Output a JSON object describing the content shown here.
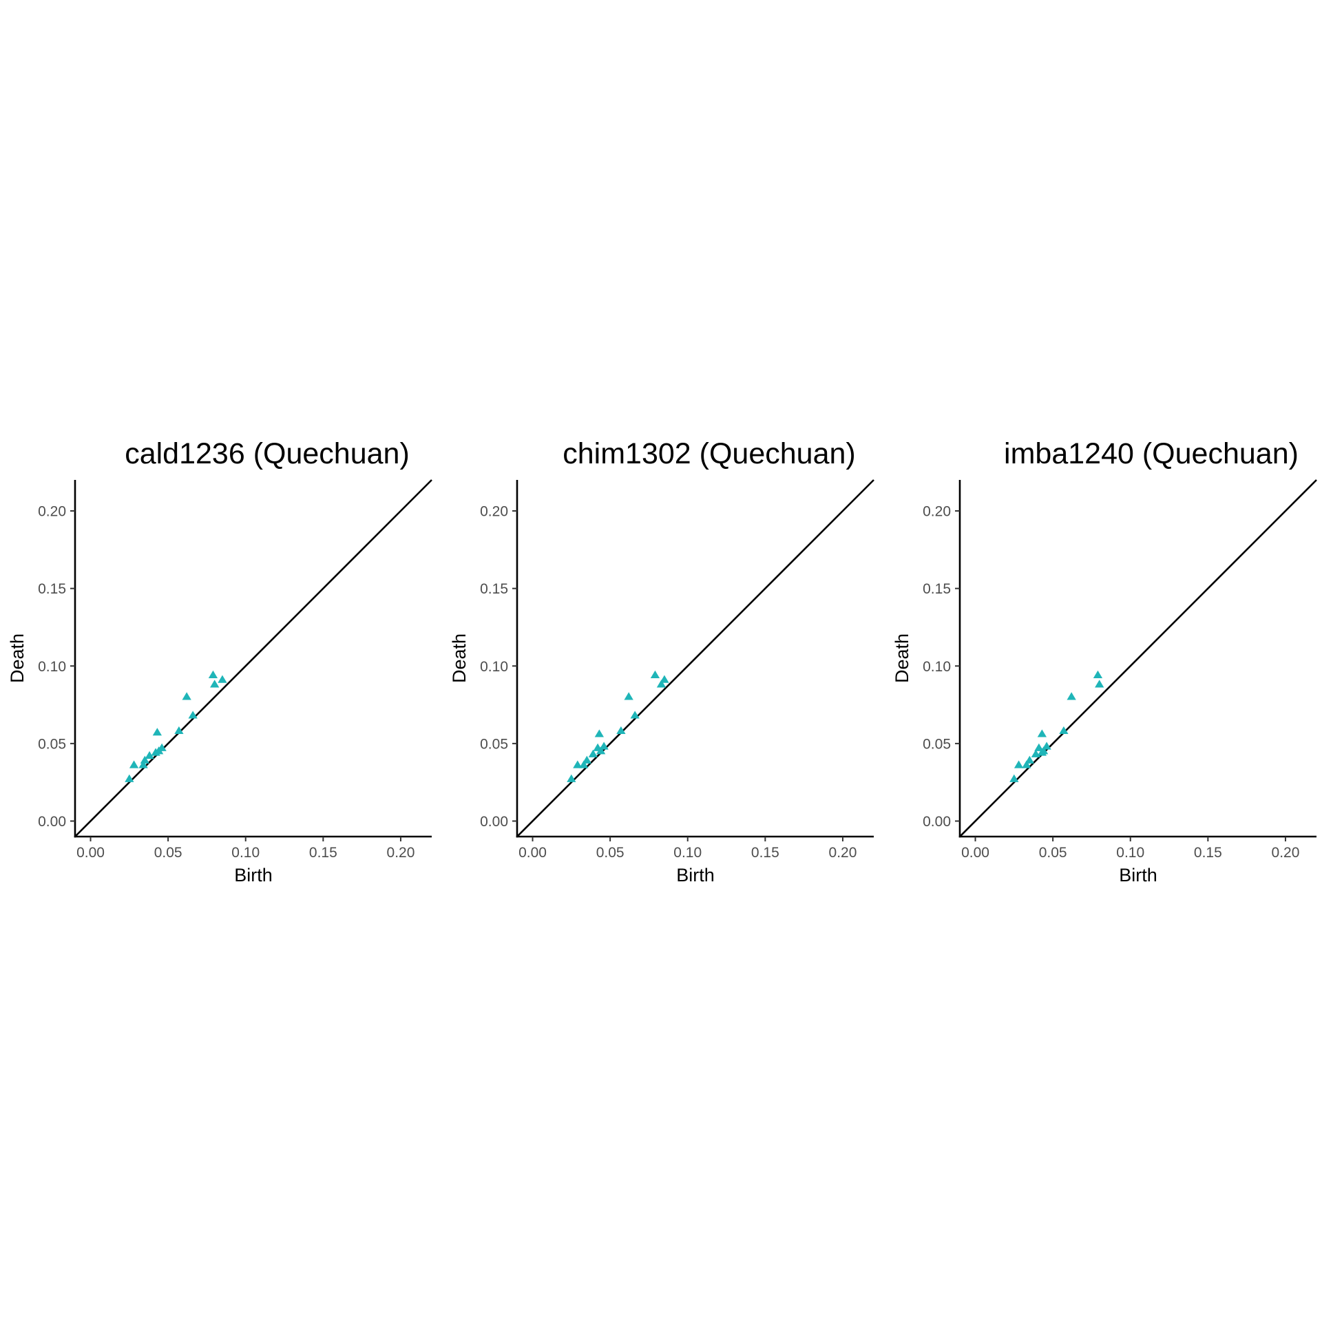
{
  "chart_data": [
    {
      "type": "scatter",
      "title": "cald1236 (Quechuan)",
      "xlabel": "Birth",
      "ylabel": "Death",
      "xlim": [
        -0.01,
        0.22
      ],
      "ylim": [
        -0.01,
        0.22
      ],
      "xticks": [
        "0.00",
        "0.05",
        "0.10",
        "0.15",
        "0.20"
      ],
      "yticks": [
        "0.00",
        "0.05",
        "0.10",
        "0.15",
        "0.20"
      ],
      "diagonal": true,
      "grid": false,
      "marker": "triangle",
      "color": "#1fb5b8",
      "points": [
        {
          "x": 0.025,
          "y": 0.027
        },
        {
          "x": 0.028,
          "y": 0.036
        },
        {
          "x": 0.034,
          "y": 0.036
        },
        {
          "x": 0.035,
          "y": 0.039
        },
        {
          "x": 0.038,
          "y": 0.042
        },
        {
          "x": 0.042,
          "y": 0.044
        },
        {
          "x": 0.044,
          "y": 0.045
        },
        {
          "x": 0.046,
          "y": 0.047
        },
        {
          "x": 0.043,
          "y": 0.057
        },
        {
          "x": 0.057,
          "y": 0.058
        },
        {
          "x": 0.062,
          "y": 0.08
        },
        {
          "x": 0.066,
          "y": 0.068
        },
        {
          "x": 0.079,
          "y": 0.094
        },
        {
          "x": 0.08,
          "y": 0.088
        },
        {
          "x": 0.085,
          "y": 0.091
        }
      ]
    },
    {
      "type": "scatter",
      "title": "chim1302 (Quechuan)",
      "xlabel": "Birth",
      "ylabel": "Death",
      "xlim": [
        -0.01,
        0.22
      ],
      "ylim": [
        -0.01,
        0.22
      ],
      "xticks": [
        "0.00",
        "0.05",
        "0.10",
        "0.15",
        "0.20"
      ],
      "yticks": [
        "0.00",
        "0.05",
        "0.10",
        "0.15",
        "0.20"
      ],
      "diagonal": true,
      "grid": false,
      "marker": "triangle",
      "color": "#1fb5b8",
      "points": [
        {
          "x": 0.025,
          "y": 0.027
        },
        {
          "x": 0.029,
          "y": 0.036
        },
        {
          "x": 0.033,
          "y": 0.036
        },
        {
          "x": 0.035,
          "y": 0.039
        },
        {
          "x": 0.039,
          "y": 0.043
        },
        {
          "x": 0.042,
          "y": 0.047
        },
        {
          "x": 0.044,
          "y": 0.045
        },
        {
          "x": 0.046,
          "y": 0.048
        },
        {
          "x": 0.043,
          "y": 0.056
        },
        {
          "x": 0.057,
          "y": 0.058
        },
        {
          "x": 0.062,
          "y": 0.08
        },
        {
          "x": 0.066,
          "y": 0.068
        },
        {
          "x": 0.079,
          "y": 0.094
        },
        {
          "x": 0.083,
          "y": 0.088
        },
        {
          "x": 0.085,
          "y": 0.091
        }
      ]
    },
    {
      "type": "scatter",
      "title": "imba1240 (Quechuan)",
      "xlabel": "Birth",
      "ylabel": "Death",
      "xlim": [
        -0.01,
        0.22
      ],
      "ylim": [
        -0.01,
        0.22
      ],
      "xticks": [
        "0.00",
        "0.05",
        "0.10",
        "0.15",
        "0.20"
      ],
      "yticks": [
        "0.00",
        "0.05",
        "0.10",
        "0.15",
        "0.20"
      ],
      "diagonal": true,
      "grid": false,
      "marker": "triangle",
      "color": "#1fb5b8",
      "points": [
        {
          "x": 0.025,
          "y": 0.027
        },
        {
          "x": 0.028,
          "y": 0.036
        },
        {
          "x": 0.033,
          "y": 0.036
        },
        {
          "x": 0.035,
          "y": 0.039
        },
        {
          "x": 0.039,
          "y": 0.043
        },
        {
          "x": 0.041,
          "y": 0.047
        },
        {
          "x": 0.043,
          "y": 0.044
        },
        {
          "x": 0.044,
          "y": 0.045
        },
        {
          "x": 0.046,
          "y": 0.048
        },
        {
          "x": 0.043,
          "y": 0.056
        },
        {
          "x": 0.057,
          "y": 0.058
        },
        {
          "x": 0.062,
          "y": 0.08
        },
        {
          "x": 0.079,
          "y": 0.094
        },
        {
          "x": 0.08,
          "y": 0.088
        }
      ]
    }
  ]
}
